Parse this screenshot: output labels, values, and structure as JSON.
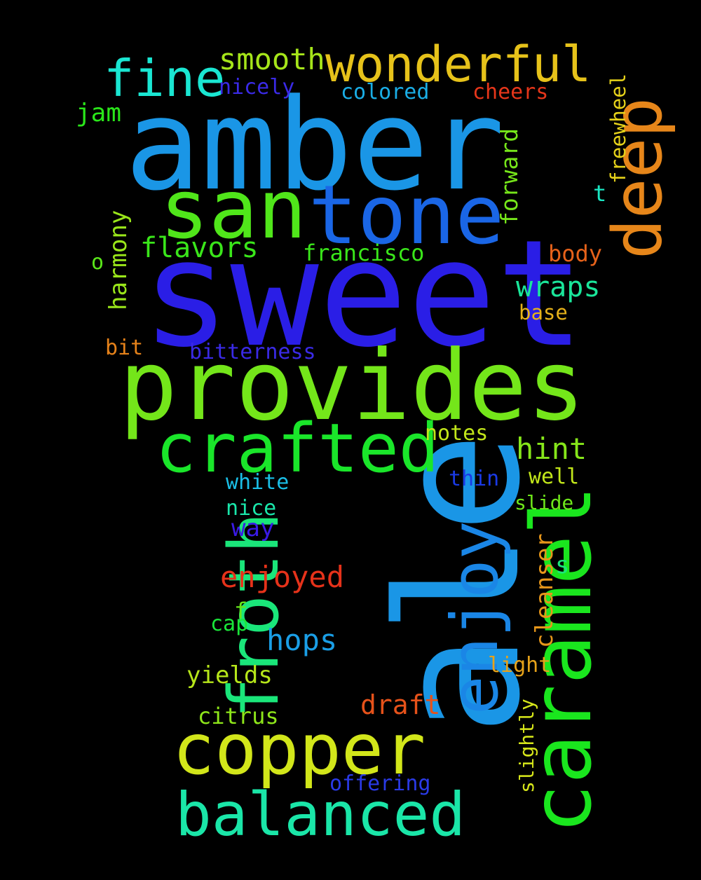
{
  "words": [
    {
      "text": "amber",
      "color": "#1a96e6"
    },
    {
      "text": "sweet",
      "color": "#2a1ee6"
    },
    {
      "text": "ale",
      "color": "#1a96e6"
    },
    {
      "text": "provides",
      "color": "#74e61a"
    },
    {
      "text": "caramel",
      "color": "#1ae61e"
    },
    {
      "text": "tone",
      "color": "#1a66e6"
    },
    {
      "text": "san",
      "color": "#50e61a"
    },
    {
      "text": "deep",
      "color": "#e6861a"
    },
    {
      "text": "crafted",
      "color": "#1ae62a"
    },
    {
      "text": "froth",
      "color": "#1ae67a"
    },
    {
      "text": "enjoy",
      "color": "#1a86e6"
    },
    {
      "text": "copper",
      "color": "#d2e61a"
    },
    {
      "text": "balanced",
      "color": "#1ae6a8"
    },
    {
      "text": "wonderful",
      "color": "#e6c21a"
    },
    {
      "text": "fine",
      "color": "#1ae6d2"
    },
    {
      "text": "smooth",
      "color": "#a6e61a"
    },
    {
      "text": "flavors",
      "color": "#3ae61a"
    },
    {
      "text": "francisco",
      "color": "#3ae61a"
    },
    {
      "text": "wraps",
      "color": "#1ae69a"
    },
    {
      "text": "hint",
      "color": "#86e61a"
    },
    {
      "text": "enjoyed",
      "color": "#e6321a"
    },
    {
      "text": "hops",
      "color": "#1a9ee6"
    },
    {
      "text": "draft",
      "color": "#e6521a"
    },
    {
      "text": "cleanser",
      "color": "#e6961a"
    },
    {
      "text": "yields",
      "color": "#b6e61a"
    },
    {
      "text": "citrus",
      "color": "#8ee61a"
    },
    {
      "text": "nicely",
      "color": "#3a2ae6"
    },
    {
      "text": "colored",
      "color": "#1aaee6"
    },
    {
      "text": "cheers",
      "color": "#e6361a"
    },
    {
      "text": "jam",
      "color": "#2ae61a"
    },
    {
      "text": "freewheel",
      "color": "#e6d21a"
    },
    {
      "text": "forward",
      "color": "#76e61a"
    },
    {
      "text": "t",
      "color": "#1ae6c2"
    },
    {
      "text": "harmony",
      "color": "#9ae61a"
    },
    {
      "text": "o",
      "color": "#5ae61a"
    },
    {
      "text": "body",
      "color": "#e6621a"
    },
    {
      "text": "base",
      "color": "#e6b21a"
    },
    {
      "text": "bit",
      "color": "#e6821a"
    },
    {
      "text": "bitterness",
      "color": "#3a2ae6"
    },
    {
      "text": "notes",
      "color": "#c2e61a"
    },
    {
      "text": "white",
      "color": "#1abee6"
    },
    {
      "text": "thin",
      "color": "#1a3ae6"
    },
    {
      "text": "well",
      "color": "#c2e61a"
    },
    {
      "text": "nice",
      "color": "#1ae6aa"
    },
    {
      "text": "slide",
      "color": "#6ee61a"
    },
    {
      "text": "way",
      "color": "#3a1ae6"
    },
    {
      "text": "s",
      "color": "#1ae67a"
    },
    {
      "text": "f",
      "color": "#66e61a"
    },
    {
      "text": "cap",
      "color": "#1ae63a"
    },
    {
      "text": "light",
      "color": "#e6a21a"
    },
    {
      "text": "slightly",
      "color": "#d6e61a"
    },
    {
      "text": "offering",
      "color": "#2a3ae6"
    }
  ]
}
